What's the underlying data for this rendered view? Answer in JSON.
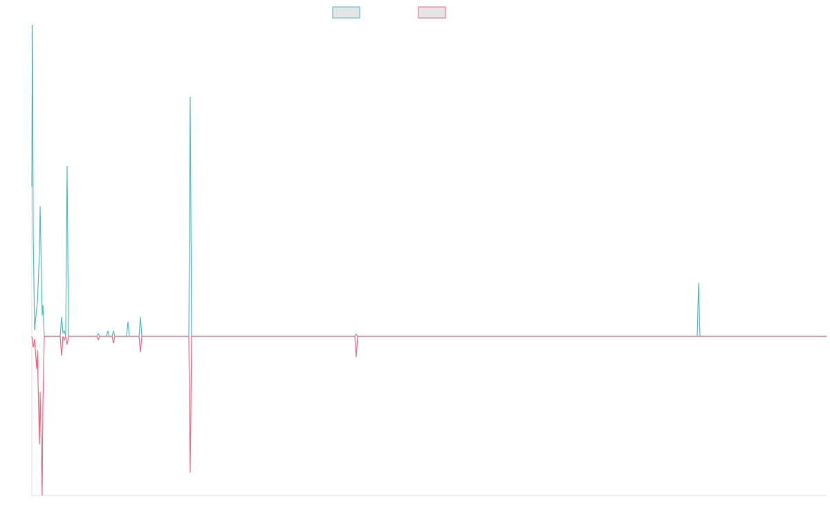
{
  "chart_data": {
    "type": "line",
    "x": [
      0,
      1,
      2,
      4,
      7,
      8,
      11,
      12,
      15,
      16,
      18,
      41,
      43,
      45,
      47,
      49,
      51,
      53,
      94,
      96,
      98,
      108,
      110,
      112,
      116,
      118,
      120,
      137,
      139,
      141,
      155,
      157,
      159,
      227,
      229,
      231,
      467,
      469,
      471,
      962,
      964,
      966,
      1149
    ],
    "xlim": [
      0,
      1149
    ],
    "ylim": [
      -230,
      450
    ],
    "series": [
      {
        "color": "#4bc0c0",
        "values": [
          216,
          450,
          150,
          9,
          40,
          48,
          120,
          188,
          30,
          45,
          0,
          0,
          28,
          5,
          8,
          0,
          246,
          0,
          0,
          4,
          0,
          0,
          8,
          0,
          0,
          8,
          0,
          0,
          21,
          0,
          0,
          28,
          0,
          0,
          346,
          0,
          0,
          3,
          0,
          0,
          77,
          0,
          0
        ]
      },
      {
        "color": "#ff6384",
        "values": [
          0,
          -8,
          -16,
          -4,
          -47,
          -20,
          -156,
          -80,
          -230,
          -100,
          0,
          0,
          -28,
          0,
          -5,
          0,
          -12,
          0,
          0,
          -5,
          0,
          0,
          0,
          0,
          0,
          -10,
          0,
          0,
          0,
          0,
          0,
          -23,
          0,
          0,
          -197,
          0,
          0,
          -30,
          0,
          0,
          0,
          0,
          0
        ]
      }
    ]
  }
}
